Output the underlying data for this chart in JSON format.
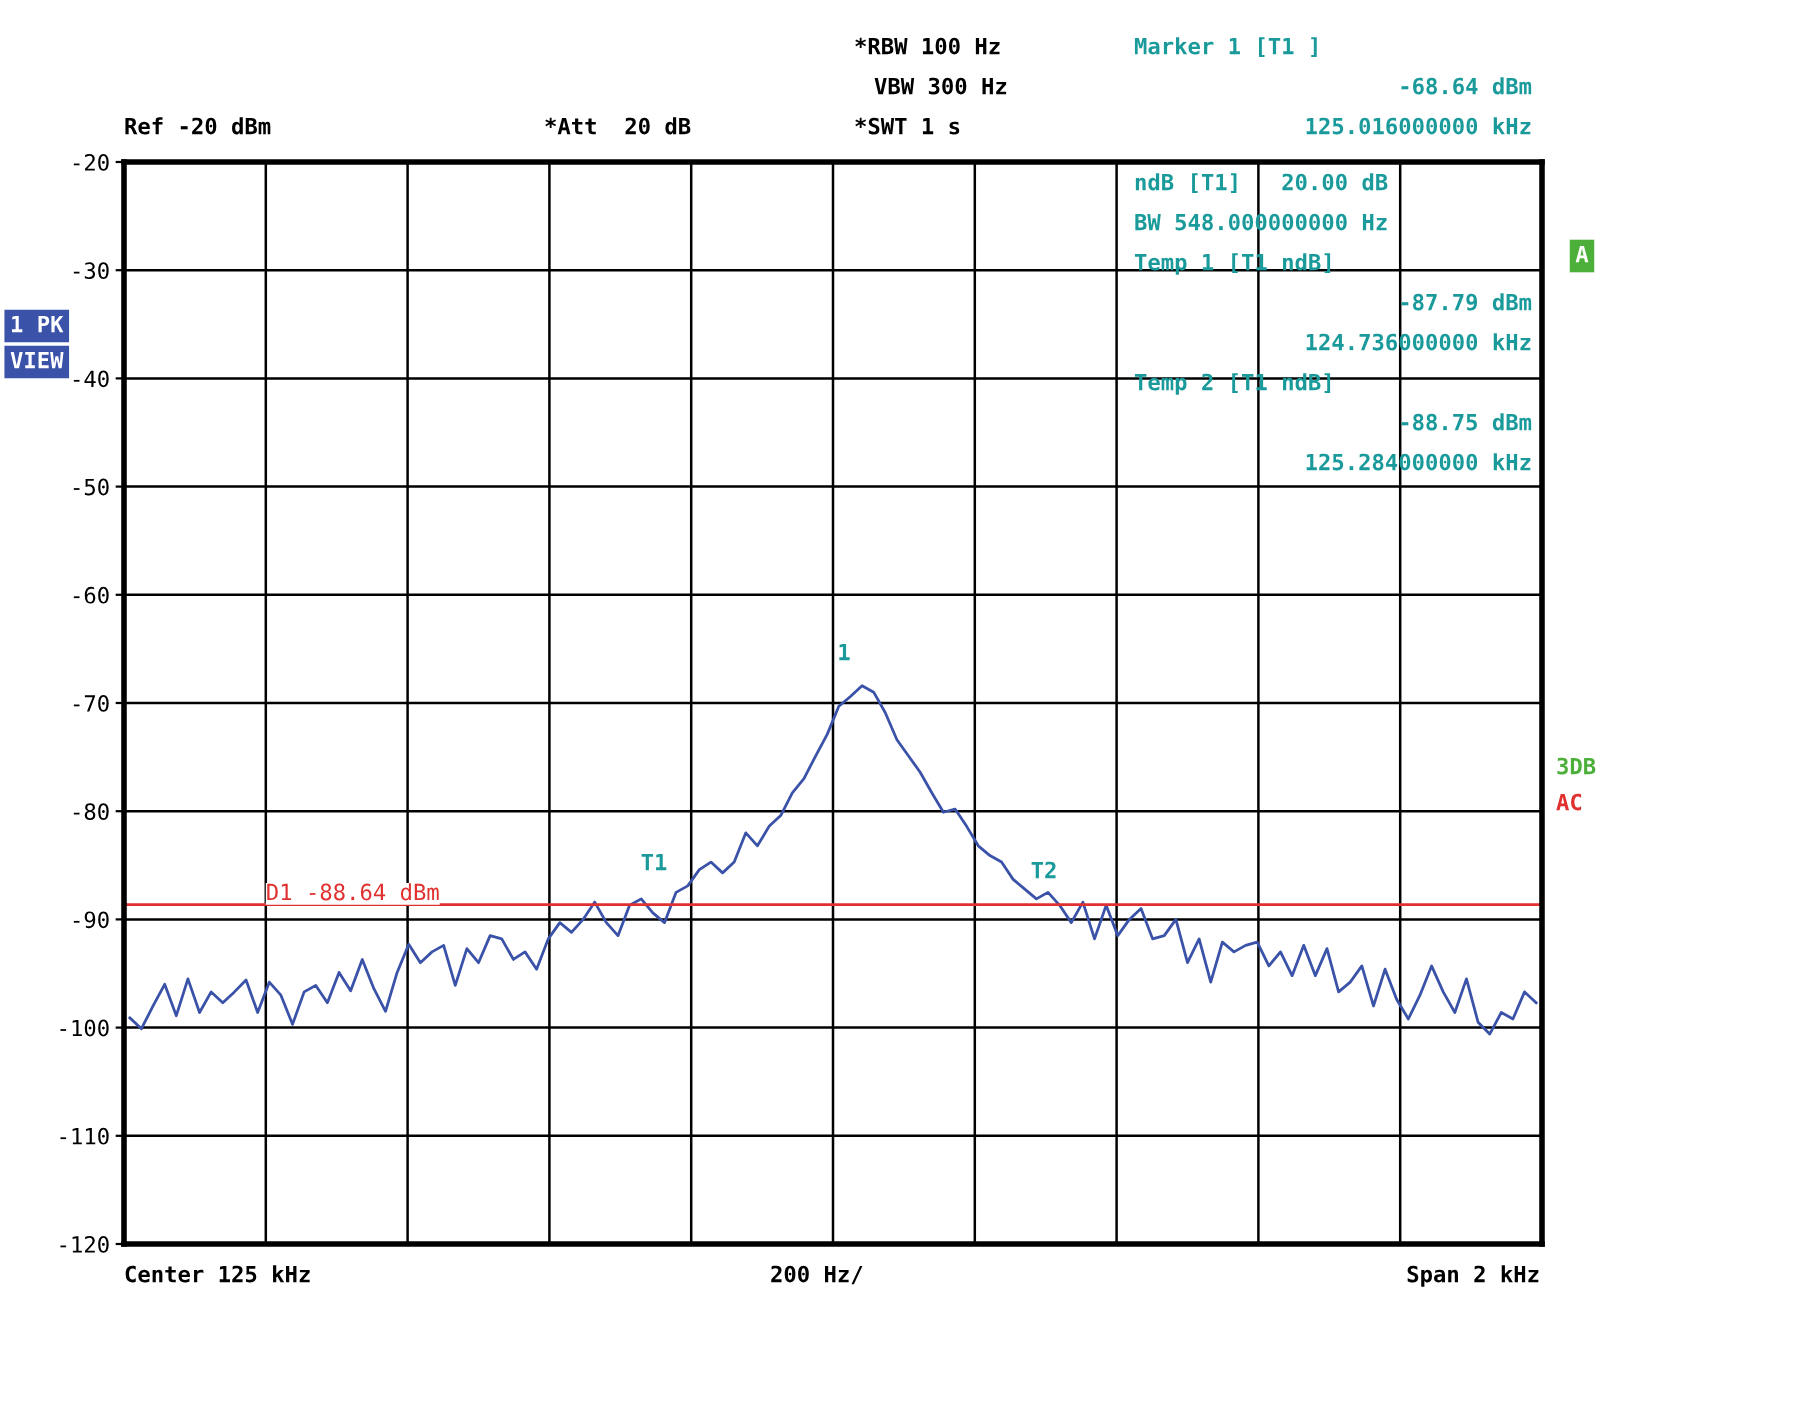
{
  "chart_data": {
    "type": "line",
    "categories": [
      null,
      null,
      null,
      null,
      null,
      null,
      null,
      null,
      null,
      null,
      null,
      null,
      null,
      null,
      null,
      null,
      null,
      null,
      null,
      null,
      null,
      null,
      null,
      null,
      null,
      null,
      null,
      null,
      null,
      null,
      null,
      null,
      null,
      null,
      null,
      null,
      null,
      null,
      null,
      null,
      null,
      null,
      null,
      null,
      null,
      null,
      null,
      null,
      null,
      null,
      null,
      null,
      null,
      null,
      null,
      null,
      null,
      null,
      null,
      null,
      null,
      null,
      null,
      null,
      null,
      null,
      null,
      null,
      null,
      null,
      null,
      null,
      null,
      null,
      null,
      null,
      null,
      null,
      null,
      null,
      null,
      null,
      null,
      null,
      null,
      null,
      null,
      null,
      null,
      null,
      null,
      null,
      null,
      null,
      null,
      null,
      null,
      null,
      null,
      null,
      null,
      null,
      null,
      null,
      null,
      null,
      null,
      null,
      null,
      null,
      null,
      null,
      null,
      null,
      null,
      null,
      null,
      null,
      null,
      null,
      null,
      null
    ],
    "ylim": [
      -120,
      -20
    ],
    "yticks": [
      -20,
      -30,
      -40,
      -50,
      -60,
      -70,
      -80,
      -90,
      -100,
      -110,
      -120
    ],
    "tick_labels": "y",
    "grid": true,
    "series": [
      {
        "color": "#3a52a8",
        "values": [
          -99.1,
          -100.1,
          -98.0,
          -96.0,
          -98.9,
          -95.5,
          -98.6,
          -96.7,
          -97.7,
          -96.7,
          -95.6,
          -98.6,
          -95.8,
          -97.0,
          -99.7,
          -96.7,
          -96.1,
          -97.7,
          -94.9,
          -96.6,
          -93.7,
          -96.4,
          -98.5,
          -94.9,
          -92.3,
          -94.0,
          -93.0,
          -92.4,
          -96.1,
          -92.7,
          -94.0,
          -91.5,
          -91.8,
          -93.7,
          -93.0,
          -94.6,
          -91.8,
          -90.3,
          -91.2,
          -90.0,
          -88.4,
          -90.3,
          -91.5,
          -88.7,
          -88.1,
          -89.4,
          -90.3,
          -87.5,
          -86.9,
          -85.4,
          -84.7,
          -85.7,
          -84.7,
          -82.0,
          -83.2,
          -81.4,
          -80.4,
          -78.3,
          -77.0,
          -74.9,
          -72.9,
          -70.3,
          -69.4,
          -68.4,
          -69.0,
          -70.9,
          -73.4,
          -74.9,
          -76.4,
          -78.3,
          -80.1,
          -79.8,
          -81.4,
          -83.2,
          -84.1,
          -84.7,
          -86.3,
          -87.2,
          -88.1,
          -87.5,
          -88.7,
          -90.3,
          -88.4,
          -91.8,
          -88.7,
          -91.5,
          -90.0,
          -89.0,
          -91.8,
          -91.5,
          -90.0,
          -94.0,
          -91.8,
          -95.8,
          -92.1,
          -93.0,
          -92.4,
          -92.1,
          -94.3,
          -93.0,
          -95.2,
          -92.4,
          -95.2,
          -92.7,
          -96.7,
          -95.8,
          -94.3,
          -98.0,
          -94.6,
          -97.4,
          -99.2,
          -97.0,
          -94.3,
          -96.7,
          -98.6,
          -95.5,
          -99.5,
          -100.6,
          -98.6,
          -99.2,
          -96.7,
          -97.7
        ]
      }
    ],
    "ref_lines": [
      {
        "axis": "y",
        "value": -88.64,
        "label": "D1 -88.64 dBm",
        "color": "#e03030"
      }
    ],
    "annotations": [
      "Ref -20 dBm",
      "*Att  20 dB",
      "*RBW 100 Hz",
      "VBW 300 Hz",
      "*SWT 1 s",
      "Marker 1 [T1 ]",
      "-68.64 dBm",
      "125.016000000 kHz",
      "ndB [T1]   20.00 dB",
      "BW 548.000000000 Hz",
      "Temp 1 [T1 ndB]",
      "-87.79 dBm",
      "124.736000000 kHz",
      "Temp 2 [T1 ndB]",
      "-88.75 dBm",
      "125.284000000 kHz",
      "1 PK",
      "VIEW",
      "A",
      "3DB",
      "AC",
      "Center 125 kHz",
      "200 Hz/",
      "Span 2 kHz",
      "1",
      "T1",
      "T2"
    ]
  }
}
